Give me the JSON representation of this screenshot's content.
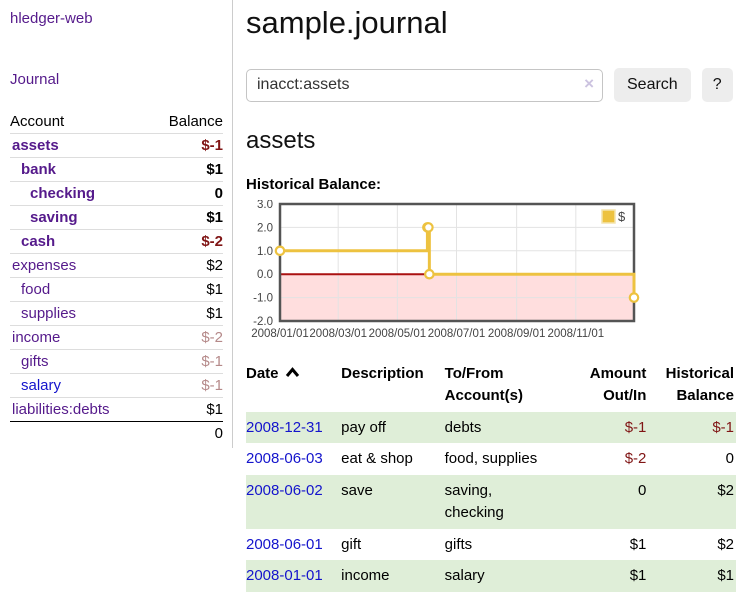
{
  "colors": {
    "link_purple": "#551A8B",
    "link_blue": "#1414CC",
    "negative": "#801515",
    "negative_muted": "#B58989",
    "row_stripe_green": "#DFEED8",
    "chart_line_gold": "#EDC240",
    "chart_zero_line_red": "#AA1111",
    "chart_negative_fill_pink": "#FFDEDE"
  },
  "sidebar": {
    "brand": "hledger-web",
    "nav_journal": "Journal",
    "accounts": {
      "col_account": "Account",
      "col_balance": "Balance",
      "rows": [
        {
          "name": "assets",
          "balance": "$-1",
          "level": 1,
          "bold": true,
          "balance_class": "neg",
          "link": "purple"
        },
        {
          "name": "bank",
          "balance": "$1",
          "level": 2,
          "bold": true,
          "balance_class": "",
          "link": "purple"
        },
        {
          "name": "checking",
          "balance": "0",
          "level": 3,
          "bold": true,
          "balance_class": "",
          "link": "purple"
        },
        {
          "name": "saving",
          "balance": "$1",
          "level": 3,
          "bold": true,
          "balance_class": "",
          "link": "purple"
        },
        {
          "name": "cash",
          "balance": "$-2",
          "level": 2,
          "bold": true,
          "balance_class": "neg",
          "link": "purple"
        },
        {
          "name": "expenses",
          "balance": "$2",
          "level": 1,
          "bold": false,
          "balance_class": "",
          "link": "purple"
        },
        {
          "name": "food",
          "balance": "$1",
          "level": 2,
          "bold": false,
          "balance_class": "",
          "link": "purple"
        },
        {
          "name": "supplies",
          "balance": "$1",
          "level": 2,
          "bold": false,
          "balance_class": "",
          "link": "purple"
        },
        {
          "name": "income",
          "balance": "$-2",
          "level": 1,
          "bold": false,
          "balance_class": "neg-muted",
          "link": "purple"
        },
        {
          "name": "gifts",
          "balance": "$-1",
          "level": 2,
          "bold": false,
          "balance_class": "neg-muted",
          "link": "purple"
        },
        {
          "name": "salary",
          "balance": "$-1",
          "level": 2,
          "bold": false,
          "balance_class": "neg-muted",
          "link": "blue"
        },
        {
          "name": "liabilities:debts",
          "balance": "$1",
          "level": 1,
          "bold": false,
          "balance_class": "",
          "link": "purple"
        }
      ],
      "total": "0"
    }
  },
  "header": {
    "title": "sample.journal"
  },
  "search": {
    "value": "inacct:assets",
    "clear_icon": "×",
    "search_button": "Search",
    "help_button": "?"
  },
  "account_view": {
    "heading": "assets",
    "chart_title": "Historical Balance:"
  },
  "chart_data": {
    "type": "line",
    "title": "Historical Balance:",
    "x_start": "2008-01-01",
    "x_end": "2008-12-31",
    "ylim": [
      -2,
      3
    ],
    "y_ticks": [
      "3.0",
      "2.0",
      "1.0",
      "0.0",
      "-1.0",
      "-2.0"
    ],
    "x_ticks": [
      {
        "label": "2008/01/01",
        "date": "2008-01-01"
      },
      {
        "label": "2008/03/01",
        "date": "2008-03-01"
      },
      {
        "label": "2008/05/01",
        "date": "2008-05-01"
      },
      {
        "label": "2008/07/01",
        "date": "2008-07-01"
      },
      {
        "label": "2008/09/01",
        "date": "2008-09-01"
      },
      {
        "label": "2008/11/01",
        "date": "2008-11-01"
      }
    ],
    "series": [
      {
        "name": "$",
        "color": "#EDC240",
        "step": true,
        "points": [
          [
            "2008-01-01",
            1
          ],
          [
            "2008-06-01",
            2
          ],
          [
            "2008-06-02",
            2
          ],
          [
            "2008-06-03",
            0
          ],
          [
            "2008-12-31",
            -1
          ]
        ]
      }
    ],
    "legend": {
      "label": "$",
      "position": "top-right"
    },
    "grid": true,
    "zero_line_color": "#AA1111",
    "negative_fill": "#FFDEDE"
  },
  "register": {
    "headers": {
      "date": "Date",
      "description": "Description",
      "accounts": "To/From\nAccount(s)",
      "amount": "Amount\nOut/In",
      "balance": "Historical\nBalance"
    },
    "rows": [
      {
        "date": "2008-12-31",
        "description": "pay off",
        "accounts": "debts",
        "amount": "$-1",
        "balance": "$-1"
      },
      {
        "date": "2008-06-03",
        "description": "eat & shop",
        "accounts": "food, supplies",
        "amount": "$-2",
        "balance": "0"
      },
      {
        "date": "2008-06-02",
        "description": "save",
        "accounts": "saving,\nchecking",
        "amount": "0",
        "balance": "$2"
      },
      {
        "date": "2008-06-01",
        "description": "gift",
        "accounts": "gifts",
        "amount": "$1",
        "balance": "$2"
      },
      {
        "date": "2008-01-01",
        "description": "income",
        "accounts": "salary",
        "amount": "$1",
        "balance": "$1"
      }
    ]
  }
}
